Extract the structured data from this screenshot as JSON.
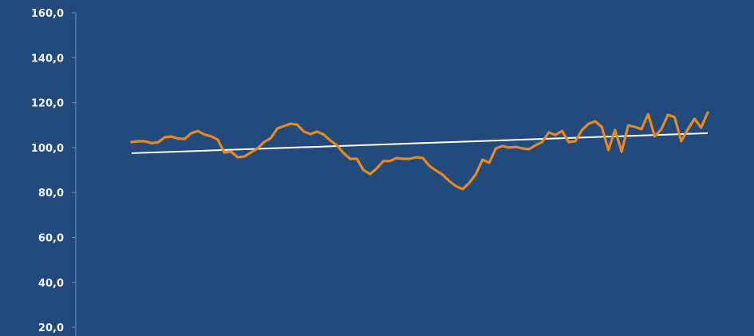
{
  "chart_data": {
    "type": "line",
    "title": "",
    "xlabel": "",
    "ylabel": "",
    "ylim": [
      20,
      160
    ],
    "yticks": [
      160,
      140,
      120,
      100,
      80,
      60,
      40,
      20
    ],
    "ytick_labels": [
      "160,0",
      "140,0",
      "120,0",
      "100,0",
      "80,0",
      "60,0",
      "40,0",
      "20,0"
    ],
    "grid": false,
    "colors": {
      "background": "#224a7d",
      "series": "#e8891f",
      "trend": "#ffffff",
      "axis": "#6f8fbf"
    },
    "series": [
      {
        "values": [
          102.5,
          102.8,
          102.8,
          102.0,
          102.3,
          104.6,
          104.9,
          104.0,
          103.8,
          106.4,
          107.4,
          105.8,
          105.0,
          103.5,
          97.8,
          98.2,
          95.7,
          96.0,
          97.8,
          99.6,
          102.5,
          104.2,
          108.5,
          109.6,
          110.6,
          110.2,
          107.1,
          106.0,
          107.1,
          105.8,
          103.2,
          101.0,
          97.5,
          95.0,
          95.0,
          90.0,
          88.2,
          90.7,
          94.0,
          94.0,
          95.3,
          95.0,
          95.0,
          95.7,
          95.3,
          91.8,
          89.7,
          87.9,
          85.0,
          82.8,
          81.5,
          84.3,
          88.2,
          94.6,
          93.2,
          99.6,
          100.7,
          100.0,
          100.3,
          99.6,
          99.3,
          101.0,
          102.5,
          106.7,
          105.6,
          107.4,
          102.5,
          102.8,
          107.8,
          110.6,
          111.7,
          109.2,
          98.9,
          107.8,
          98.2,
          109.9,
          109.2,
          108.2,
          114.9,
          105.0,
          108.2,
          114.6,
          113.5,
          102.8,
          108.1,
          112.8,
          108.9,
          115.6
        ]
      },
      {
        "type": "trendline",
        "start": 97.5,
        "end": 106.4
      }
    ]
  }
}
